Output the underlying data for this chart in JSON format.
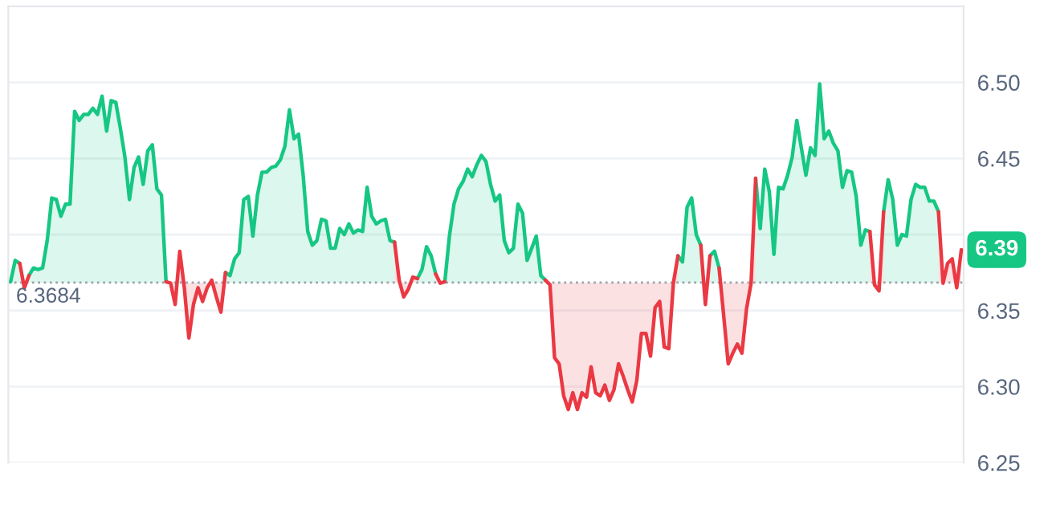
{
  "chart_data": {
    "type": "line",
    "categories": [
      null,
      null,
      null,
      null,
      null,
      null,
      null,
      null,
      null,
      null,
      null,
      null,
      null,
      null,
      null,
      null,
      null,
      null,
      null,
      null,
      null,
      null,
      null,
      null,
      null,
      null,
      null,
      null,
      null,
      null,
      null,
      null,
      null,
      null,
      null,
      null,
      null,
      null,
      null,
      null,
      null,
      null,
      null,
      null,
      null,
      null,
      null,
      null,
      null,
      null,
      null,
      null,
      null,
      null,
      null,
      null,
      null,
      null,
      null,
      null,
      null,
      null,
      null,
      null,
      null,
      null,
      null,
      null,
      null,
      null,
      null,
      null,
      null,
      null,
      null,
      null,
      null,
      null,
      null,
      null,
      null,
      null,
      null,
      null,
      null,
      null,
      null,
      null,
      null,
      null,
      null,
      null,
      null,
      null,
      null,
      null,
      null,
      null,
      null,
      null,
      null,
      null,
      null,
      null,
      null,
      null,
      null,
      null,
      null,
      null,
      null,
      null,
      null,
      null,
      null,
      null,
      null,
      null,
      null,
      null,
      null,
      null,
      null,
      null,
      null,
      null,
      null,
      null,
      null,
      null,
      null,
      null,
      null,
      null,
      null,
      null,
      null,
      null,
      null,
      null,
      null,
      null,
      null,
      null,
      null,
      null,
      null,
      null,
      null,
      null,
      null,
      null,
      null,
      null,
      null,
      null,
      null,
      null,
      null,
      null,
      null,
      null,
      null,
      null,
      null,
      null,
      null,
      null,
      null,
      null,
      null,
      null,
      null,
      null,
      null,
      null,
      null,
      null,
      null,
      null,
      null,
      null,
      null,
      null,
      null,
      null,
      null,
      null,
      null,
      null,
      null,
      null,
      null,
      null,
      null,
      null,
      null,
      null,
      null,
      null,
      null,
      null,
      null,
      null,
      null,
      null,
      null,
      null,
      null
    ],
    "series": [
      {
        "color": "#ea3943",
        "values": [
          null,
          null,
          6.381,
          6.365,
          6.373,
          null,
          null,
          null,
          null,
          null,
          null,
          null,
          null,
          null,
          null,
          null,
          null,
          null,
          null,
          null,
          null,
          null,
          null,
          null,
          null,
          null,
          null,
          null,
          null,
          null,
          null,
          null,
          null,
          null,
          6.369,
          6.368,
          6.354,
          6.389,
          6.365,
          6.332,
          6.354,
          6.365,
          6.356,
          6.365,
          6.37,
          6.359,
          6.349,
          6.375,
          null,
          null,
          null,
          null,
          null,
          null,
          null,
          null,
          null,
          null,
          null,
          null,
          null,
          null,
          null,
          null,
          null,
          null,
          null,
          null,
          null,
          null,
          null,
          null,
          null,
          null,
          null,
          null,
          null,
          null,
          null,
          null,
          null,
          null,
          null,
          null,
          6.395,
          6.37,
          6.359,
          6.364,
          6.372,
          6.371,
          null,
          null,
          null,
          6.374,
          6.368,
          6.369,
          null,
          null,
          null,
          null,
          null,
          null,
          null,
          null,
          null,
          null,
          null,
          null,
          null,
          null,
          null,
          null,
          null,
          null,
          null,
          null,
          null,
          6.37,
          6.367,
          6.319,
          6.315,
          6.294,
          6.285,
          6.296,
          6.285,
          6.296,
          6.293,
          6.313,
          6.296,
          6.294,
          6.301,
          6.291,
          6.298,
          6.315,
          6.307,
          6.298,
          6.29,
          6.304,
          6.335,
          6.335,
          6.32,
          6.352,
          6.356,
          6.326,
          6.325,
          6.368,
          6.386,
          null,
          null,
          null,
          null,
          6.393,
          6.354,
          6.386,
          null,
          6.378,
          6.347,
          6.315,
          6.322,
          6.328,
          6.322,
          6.351,
          6.368,
          6.437,
          null,
          null,
          null,
          null,
          null,
          null,
          null,
          null,
          null,
          null,
          null,
          null,
          null,
          null,
          null,
          null,
          null,
          null,
          null,
          null,
          null,
          null,
          null,
          null,
          6.402,
          6.367,
          6.363,
          6.415,
          null,
          null,
          null,
          null,
          null,
          null,
          null,
          null,
          null,
          null,
          null,
          6.415,
          6.368,
          6.381,
          6.384,
          6.365,
          6.39
        ]
      },
      {
        "color": "#16c784",
        "values": [
          6.369,
          6.383,
          6.381,
          null,
          6.373,
          6.378,
          6.377,
          6.378,
          6.396,
          6.424,
          6.423,
          6.412,
          6.42,
          6.42,
          6.481,
          6.475,
          6.479,
          6.479,
          6.483,
          6.479,
          6.491,
          6.468,
          6.488,
          6.487,
          6.47,
          6.451,
          6.423,
          6.444,
          6.451,
          6.433,
          6.455,
          6.459,
          6.43,
          6.426,
          6.369,
          null,
          null,
          null,
          null,
          null,
          null,
          null,
          null,
          null,
          null,
          null,
          null,
          6.375,
          6.373,
          6.384,
          6.388,
          6.423,
          6.425,
          6.399,
          6.426,
          6.441,
          6.441,
          6.444,
          6.445,
          6.449,
          6.458,
          6.482,
          6.463,
          6.466,
          6.439,
          6.402,
          6.393,
          6.396,
          6.41,
          6.409,
          6.391,
          6.391,
          6.404,
          6.4,
          6.407,
          6.401,
          6.403,
          6.402,
          6.431,
          6.412,
          6.407,
          6.409,
          6.41,
          6.396,
          6.395,
          null,
          null,
          null,
          null,
          6.371,
          6.377,
          6.392,
          6.386,
          6.374,
          null,
          6.369,
          6.399,
          6.42,
          6.43,
          6.435,
          6.443,
          6.438,
          6.446,
          6.452,
          6.448,
          6.433,
          6.422,
          6.426,
          6.396,
          6.388,
          6.391,
          6.42,
          6.414,
          6.383,
          6.391,
          6.399,
          6.373,
          6.37,
          null,
          null,
          null,
          null,
          null,
          null,
          null,
          null,
          null,
          null,
          null,
          null,
          null,
          null,
          null,
          null,
          null,
          null,
          null,
          null,
          null,
          null,
          null,
          null,
          null,
          null,
          null,
          null,
          6.386,
          6.382,
          6.418,
          6.424,
          6.4,
          6.393,
          null,
          6.386,
          6.389,
          6.378,
          null,
          null,
          null,
          null,
          null,
          null,
          null,
          6.437,
          6.404,
          6.443,
          6.428,
          6.387,
          6.431,
          6.43,
          6.439,
          6.451,
          6.475,
          6.457,
          6.439,
          6.457,
          6.452,
          6.499,
          6.463,
          6.468,
          6.46,
          6.455,
          6.431,
          6.442,
          6.441,
          6.425,
          6.393,
          6.403,
          6.402,
          null,
          null,
          6.415,
          6.436,
          6.423,
          6.393,
          6.4,
          6.399,
          6.423,
          6.433,
          6.431,
          6.431,
          6.422,
          6.422,
          6.415,
          null,
          null,
          null,
          null,
          null
        ]
      }
    ],
    "ylim": [
      6.25,
      6.55
    ],
    "yticks": [
      6.25,
      {
        "value": 6.3,
        "label": "6.30"
      },
      6.35,
      {
        "value": 6.4,
        "label": null
      },
      6.45,
      {
        "value": 6.5,
        "label": "6.50"
      }
    ],
    "grid": "y",
    "ref_lines": [
      {
        "axis": "y",
        "value": 6.3684,
        "label": "6.3684",
        "color": "#9ca3af",
        "line_style": "dotted"
      }
    ],
    "annotations": [
      {
        "text": "6.39",
        "y": 6.39
      }
    ]
  }
}
